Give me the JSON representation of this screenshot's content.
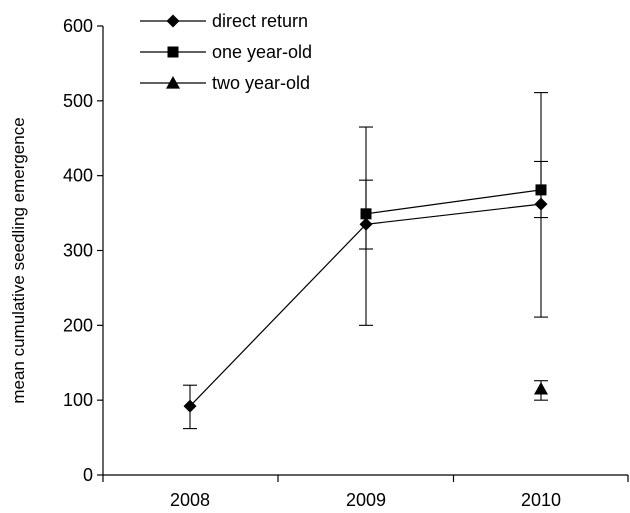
{
  "chart_data": {
    "type": "line",
    "title": "",
    "xlabel": "",
    "ylabel": "mean cumulative seedling emergence",
    "categories": [
      "2008",
      "2009",
      "2010"
    ],
    "ylim": [
      0,
      600
    ],
    "yticks": [
      0,
      100,
      200,
      300,
      400,
      500,
      600
    ],
    "grid": false,
    "legend_position": "top-left",
    "series": [
      {
        "name": "direct return",
        "marker": "diamond",
        "values": [
          92,
          335,
          362
        ],
        "err_low": [
          62,
          302,
          211
        ],
        "err_high": [
          120,
          394,
          419
        ]
      },
      {
        "name": "one year-old",
        "marker": "square",
        "values": [
          null,
          349,
          381
        ],
        "err_low": [
          null,
          200,
          344
        ],
        "err_high": [
          null,
          465,
          511
        ]
      },
      {
        "name": "two year-old",
        "marker": "triangle",
        "values": [
          null,
          null,
          115
        ],
        "err_low": [
          null,
          null,
          100
        ],
        "err_high": [
          null,
          null,
          126
        ]
      }
    ]
  }
}
